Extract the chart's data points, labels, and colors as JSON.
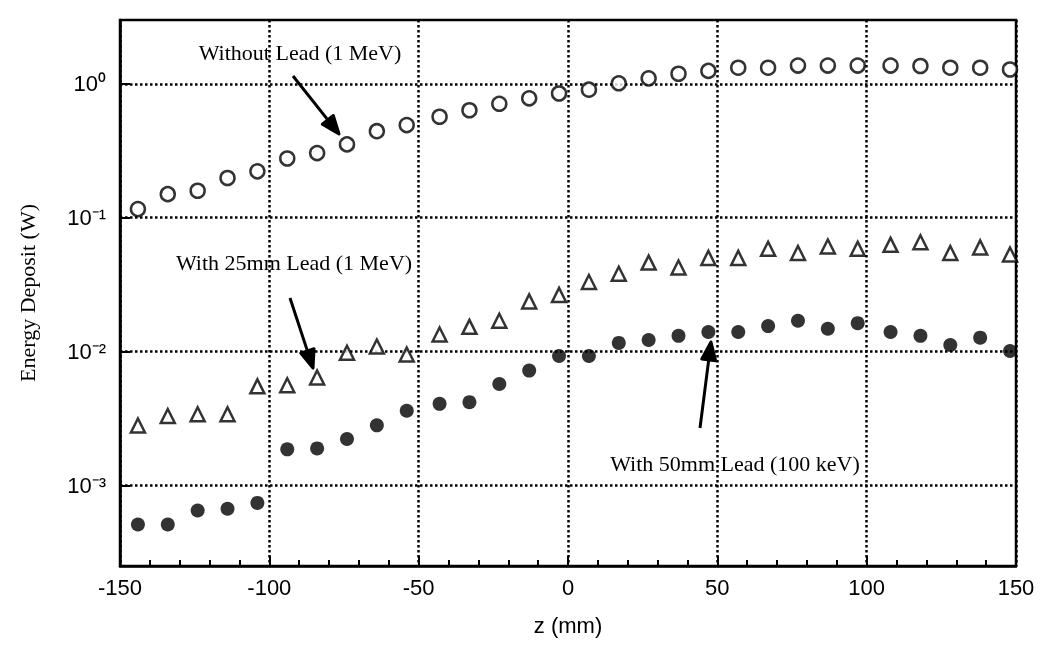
{
  "chart_data": {
    "type": "scatter",
    "xlabel": "z (mm)",
    "ylabel": "Energy Deposit (W)",
    "x": [
      -144,
      -134,
      -124,
      -114,
      -104,
      -94,
      -84,
      -74,
      -64,
      -54,
      -43,
      -33,
      -23,
      -13,
      -3,
      7,
      17,
      27,
      37,
      47,
      57,
      67,
      77,
      87,
      97,
      108,
      118,
      128,
      138,
      148
    ],
    "series": [
      {
        "color": "#000000",
        "marker": "circle",
        "values": [
          0.116,
          0.15,
          0.159,
          0.198,
          0.222,
          0.277,
          0.304,
          0.353,
          0.443,
          0.492,
          0.568,
          0.635,
          0.71,
          0.78,
          0.847,
          0.905,
          1.01,
          1.1,
          1.19,
          1.25,
          1.32,
          1.32,
          1.37,
          1.37,
          1.37,
          1.37,
          1.36,
          1.32,
          1.32,
          1.28
        ]
      },
      {
        "color": "#000000",
        "marker": "triangle",
        "values": [
          0.0028,
          0.0033,
          0.0034,
          0.0034,
          0.0055,
          0.0056,
          0.0064,
          0.0098,
          0.0109,
          0.0095,
          0.0134,
          0.0153,
          0.017,
          0.0237,
          0.0265,
          0.0331,
          0.0381,
          0.0462,
          0.0425,
          0.0501,
          0.0501,
          0.0586,
          0.0545,
          0.061,
          0.0586,
          0.0627,
          0.0655,
          0.0545,
          0.06,
          0.0531
        ]
      },
      {
        "color": "#000000",
        "marker": "circle",
        "values": [
          0.00051,
          0.00051,
          0.00065,
          0.00067,
          0.00074,
          0.00186,
          0.00189,
          0.00222,
          0.00281,
          0.00361,
          0.00407,
          0.00419,
          0.00572,
          0.00721,
          0.00927,
          0.00927,
          0.0116,
          0.0122,
          0.0131,
          0.014,
          0.014,
          0.0155,
          0.017,
          0.0148,
          0.0163,
          0.014,
          0.0131,
          0.0112,
          0.0127,
          0.0101
        ]
      }
    ],
    "xlim": [
      -150,
      150
    ],
    "xticks": [
      -150,
      -100,
      -50,
      0,
      50,
      100,
      150
    ],
    "log": "y",
    "ylim": [
      0.00025,
      3
    ],
    "yticks": [
      {
        "value": 1,
        "label": "10⁰"
      },
      {
        "value": 0.1,
        "label": "10⁻¹"
      },
      {
        "value": 0.01,
        "label": "10⁻²"
      },
      {
        "value": 0.001,
        "label": "10⁻³"
      }
    ],
    "grid": true,
    "annotations": [
      "Without Lead (1 MeV)",
      "With 25mm Lead (1 MeV)",
      "With 50mm Lead (100 keV)"
    ]
  }
}
